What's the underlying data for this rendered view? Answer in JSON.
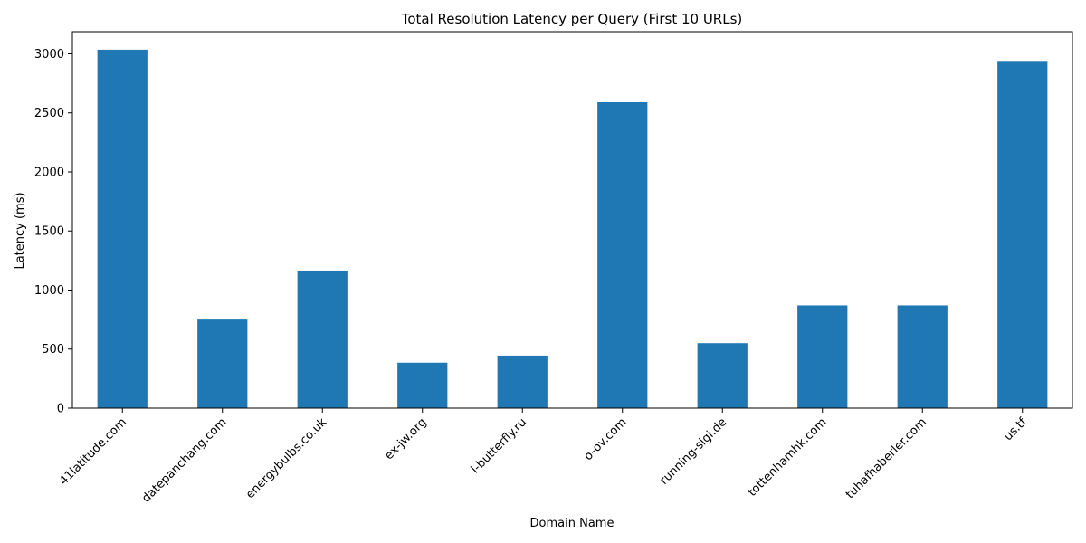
{
  "chart_data": {
    "type": "bar",
    "title": "Total Resolution Latency per Query (First 10 URLs)",
    "xlabel": "Domain Name",
    "ylabel": "Latency (ms)",
    "categories": [
      "41latitude.com",
      "datepanchang.com",
      "energybulbs.co.uk",
      "ex-jw.org",
      "i-butterfly.ru",
      "o-ov.com",
      "running-sigi.de",
      "tottenhamhk.com",
      "tuhafhaberler.com",
      "us.tf"
    ],
    "values": [
      3035,
      750,
      1165,
      385,
      445,
      2590,
      550,
      870,
      870,
      2940
    ],
    "ylim": [
      0,
      3187.5
    ],
    "yticks": [
      0,
      500,
      1000,
      1500,
      2000,
      2500,
      3000
    ],
    "bar_color": "#1f77b4",
    "grid": false,
    "legend": "none"
  }
}
